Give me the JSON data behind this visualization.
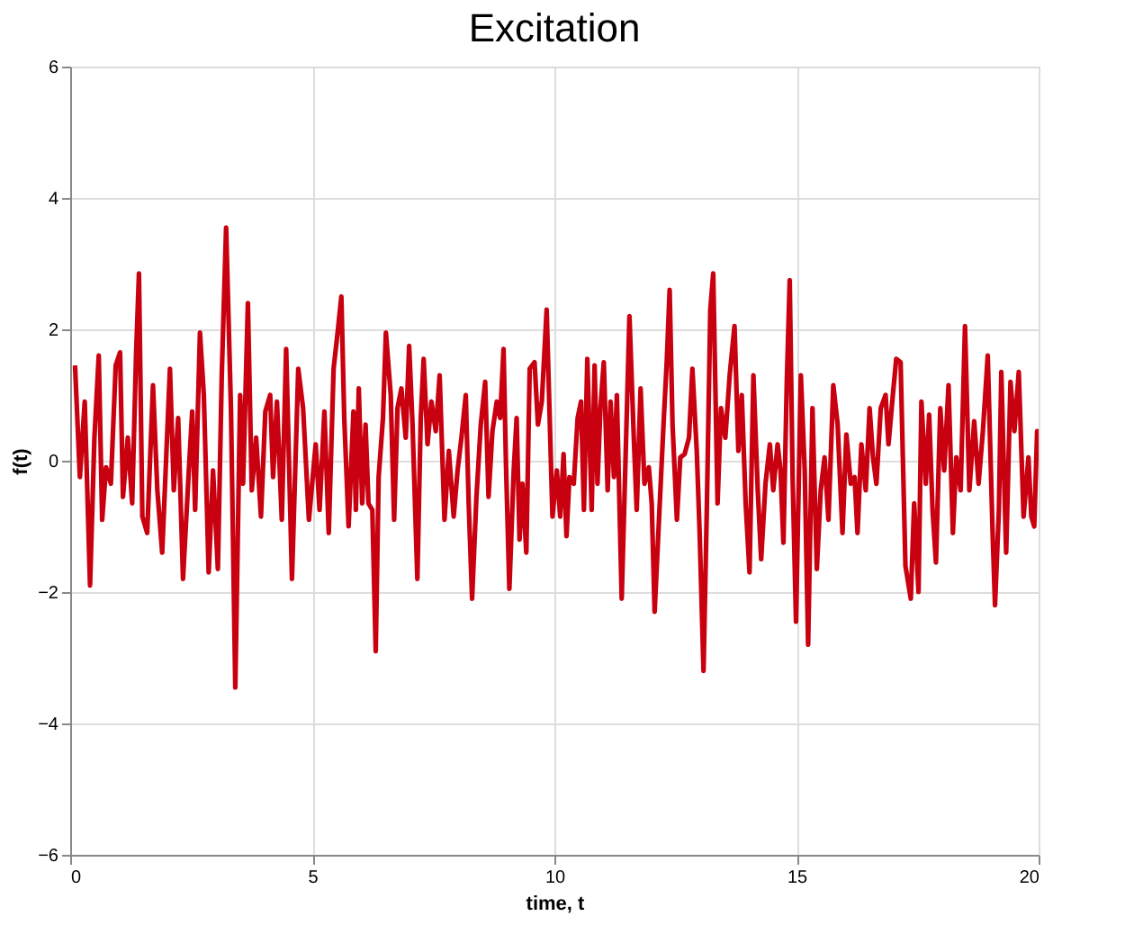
{
  "chart_data": {
    "type": "line",
    "title": "Excitation",
    "xlabel": "time, t",
    "ylabel": "f(t)",
    "xlim": [
      0,
      20
    ],
    "ylim": [
      -6,
      6
    ],
    "xticks": [
      0,
      5,
      10,
      15,
      20
    ],
    "yticks": [
      -6,
      -4,
      -2,
      0,
      2,
      4,
      6
    ],
    "grid": true,
    "line_style": "solid",
    "marker": "none",
    "series": [
      {
        "color": "#c8000f",
        "x": [
          0.1,
          0.2,
          0.3,
          0.41,
          0.5,
          0.59,
          0.66,
          0.74,
          0.84,
          0.94,
          1.03,
          1.09,
          1.19,
          1.28,
          1.36,
          1.42,
          1.49,
          1.59,
          1.71,
          1.8,
          1.9,
          2.06,
          2.14,
          2.23,
          2.33,
          2.45,
          2.52,
          2.58,
          2.68,
          2.76,
          2.86,
          2.95,
          3.05,
          3.13,
          3.22,
          3.32,
          3.41,
          3.51,
          3.57,
          3.67,
          3.75,
          3.84,
          3.94,
          4.03,
          4.13,
          4.19,
          4.27,
          4.37,
          4.46,
          4.58,
          4.71,
          4.81,
          4.93,
          5.07,
          5.15,
          5.25,
          5.34,
          5.44,
          5.53,
          5.6,
          5.66,
          5.75,
          5.85,
          5.9,
          5.96,
          6.03,
          6.1,
          6.16,
          6.24,
          6.31,
          6.37,
          6.46,
          6.52,
          6.62,
          6.69,
          6.76,
          6.84,
          6.93,
          7.0,
          7.07,
          7.17,
          7.24,
          7.3,
          7.38,
          7.46,
          7.55,
          7.63,
          7.73,
          7.82,
          7.92,
          8.0,
          8.08,
          8.17,
          8.23,
          8.3,
          8.39,
          8.48,
          8.57,
          8.64,
          8.72,
          8.81,
          8.88,
          8.95,
          9.0,
          9.07,
          9.16,
          9.22,
          9.28,
          9.34,
          9.42,
          9.49,
          9.59,
          9.66,
          9.74,
          9.84,
          9.96,
          10.05,
          10.12,
          10.19,
          10.25,
          10.31,
          10.4,
          10.48,
          10.55,
          10.61,
          10.68,
          10.77,
          10.83,
          10.89,
          10.95,
          11.02,
          11.1,
          11.16,
          11.23,
          11.29,
          11.39,
          11.47,
          11.55,
          11.64,
          11.7,
          11.78,
          11.86,
          11.95,
          12.01,
          12.07,
          12.16,
          12.26,
          12.32,
          12.38,
          12.44,
          12.53,
          12.6,
          12.69,
          12.78,
          12.85,
          12.94,
          13.0,
          13.08,
          13.15,
          13.22,
          13.28,
          13.37,
          13.44,
          13.53,
          13.62,
          13.72,
          13.8,
          13.87,
          13.95,
          14.03,
          14.11,
          14.2,
          14.27,
          14.36,
          14.45,
          14.52,
          14.61,
          14.67,
          14.73,
          14.8,
          14.86,
          14.92,
          14.99,
          15.09,
          15.17,
          15.24,
          15.33,
          15.42,
          15.5,
          15.58,
          15.66,
          15.76,
          15.85,
          15.95,
          16.03,
          16.12,
          16.2,
          16.26,
          16.34,
          16.43,
          16.51,
          16.58,
          16.65,
          16.74,
          16.84,
          16.9,
          16.99,
          17.06,
          17.15,
          17.25,
          17.36,
          17.43,
          17.52,
          17.58,
          17.67,
          17.74,
          17.81,
          17.88,
          17.97,
          18.05,
          18.14,
          18.23,
          18.3,
          18.39,
          18.48,
          18.57,
          18.67,
          18.76,
          18.85,
          18.95,
          19.05,
          19.1,
          19.18,
          19.23,
          19.33,
          19.42,
          19.5,
          19.59,
          19.69,
          19.79,
          19.85,
          19.91,
          19.97,
          20.0
        ],
        "values": [
          1.45,
          -0.25,
          0.9,
          -1.9,
          0.35,
          1.6,
          -0.9,
          -0.1,
          -0.35,
          1.45,
          1.65,
          -0.55,
          0.35,
          -0.65,
          1.6,
          2.85,
          -0.85,
          -1.1,
          1.15,
          -0.45,
          -1.4,
          1.4,
          -0.45,
          0.65,
          -1.8,
          -0.15,
          0.75,
          -0.75,
          1.95,
          1.0,
          -1.7,
          -0.15,
          -1.65,
          1.3,
          3.55,
          0.8,
          -3.45,
          1.0,
          -0.35,
          2.4,
          -0.45,
          0.35,
          -0.85,
          0.75,
          1.0,
          -0.25,
          0.9,
          -0.9,
          1.7,
          -1.8,
          1.4,
          0.8,
          -0.9,
          0.25,
          -0.75,
          0.75,
          -1.1,
          1.4,
          2.0,
          2.5,
          0.65,
          -1.0,
          0.75,
          -0.75,
          1.1,
          -0.65,
          0.55,
          -0.65,
          -0.75,
          -2.9,
          -0.25,
          0.65,
          1.95,
          1.0,
          -0.9,
          0.8,
          1.1,
          0.35,
          1.75,
          0.55,
          -1.8,
          0.65,
          1.55,
          0.25,
          0.9,
          0.45,
          1.3,
          -0.9,
          0.15,
          -0.85,
          -0.15,
          0.35,
          1.0,
          -0.65,
          -2.1,
          -0.55,
          0.55,
          1.2,
          -0.55,
          0.45,
          0.9,
          0.65,
          1.7,
          -0.05,
          -1.95,
          -0.15,
          0.65,
          -1.2,
          -0.35,
          -1.4,
          1.4,
          1.5,
          0.55,
          0.9,
          2.3,
          -0.85,
          -0.15,
          -0.85,
          0.1,
          -1.15,
          -0.25,
          -0.35,
          0.65,
          0.9,
          -0.75,
          1.55,
          -0.75,
          1.45,
          -0.35,
          0.8,
          1.5,
          -0.45,
          0.9,
          -0.25,
          1.0,
          -2.1,
          0.05,
          2.2,
          0.35,
          -0.75,
          1.1,
          -0.35,
          -0.1,
          -0.65,
          -2.3,
          -0.9,
          0.65,
          1.5,
          2.6,
          0.55,
          -0.9,
          0.05,
          0.1,
          0.35,
          1.4,
          0.15,
          -1.1,
          -3.2,
          -0.65,
          2.3,
          2.85,
          -0.65,
          0.8,
          0.35,
          1.3,
          2.05,
          0.15,
          1.0,
          -0.65,
          -1.7,
          1.3,
          -0.45,
          -1.5,
          -0.35,
          0.25,
          -0.45,
          0.25,
          -0.15,
          -1.25,
          1.2,
          2.75,
          -0.25,
          -2.45,
          1.3,
          -0.15,
          -2.8,
          0.8,
          -1.65,
          -0.45,
          0.05,
          -0.9,
          1.15,
          0.55,
          -1.1,
          0.4,
          -0.35,
          -0.25,
          -1.1,
          0.25,
          -0.45,
          0.8,
          0.05,
          -0.35,
          0.8,
          1.0,
          0.25,
          1.0,
          1.55,
          1.5,
          -1.6,
          -2.1,
          -0.65,
          -2.0,
          0.9,
          -0.35,
          0.7,
          -0.75,
          -1.55,
          0.8,
          -0.15,
          1.15,
          -1.1,
          0.05,
          -0.45,
          2.05,
          -0.45,
          0.6,
          -0.35,
          0.45,
          1.6,
          -1.1,
          -2.2,
          -0.75,
          1.35,
          -1.4,
          1.2,
          0.45,
          1.35,
          -0.85,
          0.05,
          -0.85,
          -1.0,
          0.45,
          0.4
        ]
      }
    ]
  }
}
